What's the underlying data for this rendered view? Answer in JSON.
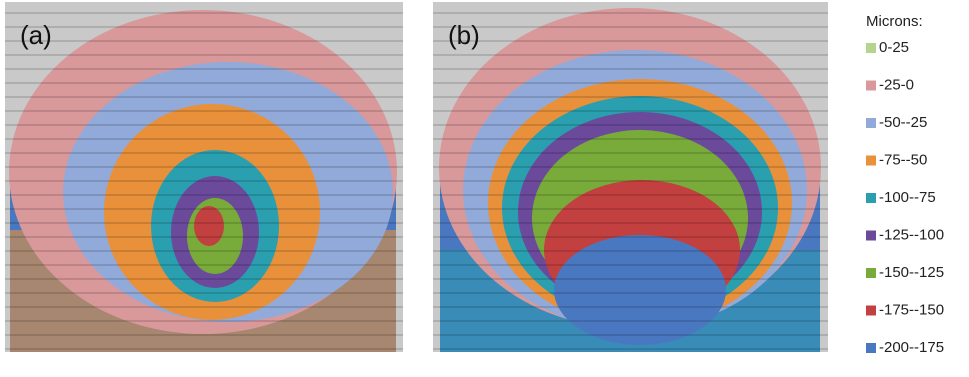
{
  "panels": [
    {
      "label": "(a)"
    },
    {
      "label": "(b)"
    }
  ],
  "legend": {
    "title": "Microns:",
    "items": [
      {
        "label": "0-25",
        "color": "#b3d58f"
      },
      {
        "label": "-25-0",
        "color": "#d9999b"
      },
      {
        "label": "-50--25",
        "color": "#92aad9"
      },
      {
        "label": "-75--50",
        "color": "#e8913a"
      },
      {
        "label": "-100--75",
        "color": "#2a9fb0"
      },
      {
        "label": "-125--100",
        "color": "#6b4a9c"
      },
      {
        "label": "-150--125",
        "color": "#79ab3a"
      },
      {
        "label": "-175--150",
        "color": "#c2403f"
      },
      {
        "label": "-200--175",
        "color": "#4a78c0"
      }
    ]
  }
}
